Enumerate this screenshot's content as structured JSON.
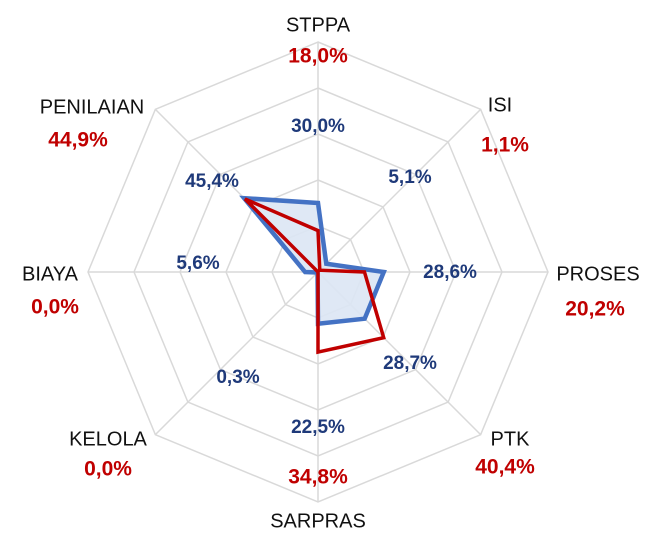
{
  "chart_data": {
    "type": "radar",
    "categories": [
      "STPPA",
      "ISI",
      "PROSES",
      "PTK",
      "SARPRAS",
      "KELOLA",
      "BIAYA",
      "PENILAIAN"
    ],
    "series": [
      {
        "color": "#c00000",
        "values": [
          18.0,
          1.1,
          20.2,
          40.4,
          34.8,
          0.0,
          0.0,
          44.9
        ],
        "value_labels": [
          "18,0%",
          "1,1%",
          "20,2%",
          "40,4%",
          "34,8%",
          "0,0%",
          "0,0%",
          "44,9%"
        ]
      },
      {
        "color": "#4472c4",
        "fill": "#dbe5f4",
        "values": [
          30.0,
          5.1,
          28.6,
          28.7,
          22.5,
          0.3,
          5.6,
          45.4
        ],
        "value_labels": [
          "30,0%",
          "5,1%",
          "28,6%",
          "28,7%",
          "22,5%",
          "0,3%",
          "5,6%",
          "45,4%"
        ]
      }
    ],
    "rlim": [
      0,
      100
    ],
    "rticks": [
      20,
      40,
      60,
      80,
      100
    ],
    "grid": true
  }
}
